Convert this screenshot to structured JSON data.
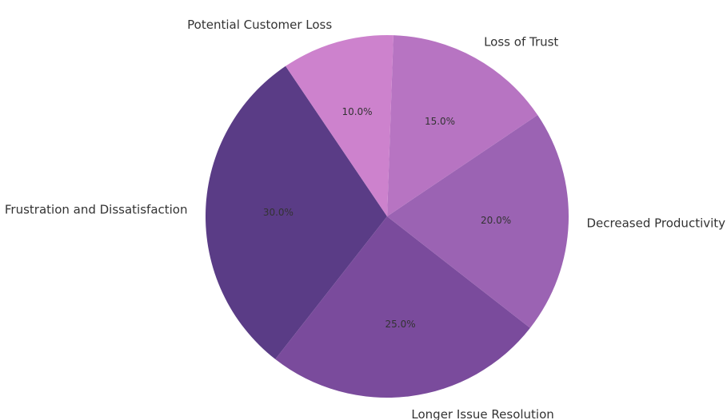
{
  "chart_data": {
    "type": "pie",
    "categories": [
      "Frustration and Dissatisfaction",
      "Longer Issue Resolution",
      "Decreased Productivity",
      "Loss of Trust",
      "Potential Customer Loss"
    ],
    "values": [
      30.0,
      25.0,
      20.0,
      15.0,
      10.0
    ],
    "percent_labels": [
      "30.0%",
      "25.0%",
      "20.0%",
      "15.0%",
      "10.0%"
    ],
    "colors": [
      "#5a3c86",
      "#7a4b9c",
      "#9b63b3",
      "#b774c2",
      "#cd82cd"
    ],
    "start_angle_deg": 124,
    "direction": "counterclockwise",
    "legend": "none"
  }
}
